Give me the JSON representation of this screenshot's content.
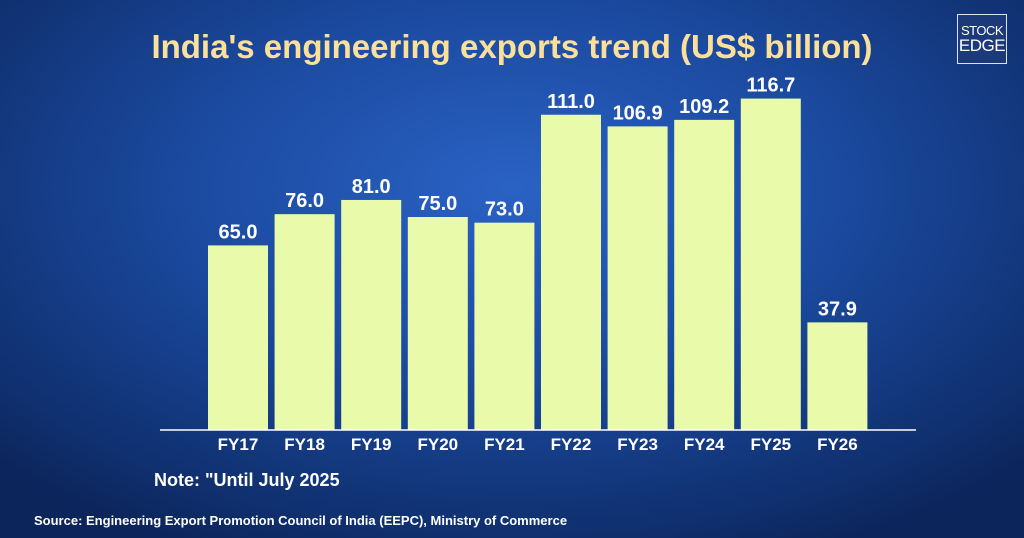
{
  "logo": {
    "line1": "STOCK",
    "line2": "EDGE"
  },
  "note": "Note: \"Until July 2025",
  "source": "Source: Engineering Export Promotion Council of India (EEPC), Ministry of Commerce",
  "chart_data": {
    "type": "bar",
    "title": "India's engineering exports trend (US$ billion)",
    "categories": [
      "FY17",
      "FY18",
      "FY19",
      "FY20",
      "FY21",
      "FY22",
      "FY23",
      "FY24",
      "FY25",
      "FY26"
    ],
    "values": [
      65.0,
      76.0,
      81.0,
      75.0,
      73.0,
      111.0,
      106.9,
      109.2,
      116.7,
      37.9
    ],
    "data_labels": [
      "65.0",
      "76.0",
      "81.0",
      "75.0",
      "73.0",
      "111.0",
      "106.9",
      "109.2",
      "116.7",
      "37.9"
    ],
    "xlabel": "",
    "ylabel": "",
    "ylim": [
      0,
      120
    ],
    "grid": false,
    "colors": {
      "bar": "#e9fbaa",
      "title": "#fbe09a",
      "axis": "#ffffff"
    }
  }
}
